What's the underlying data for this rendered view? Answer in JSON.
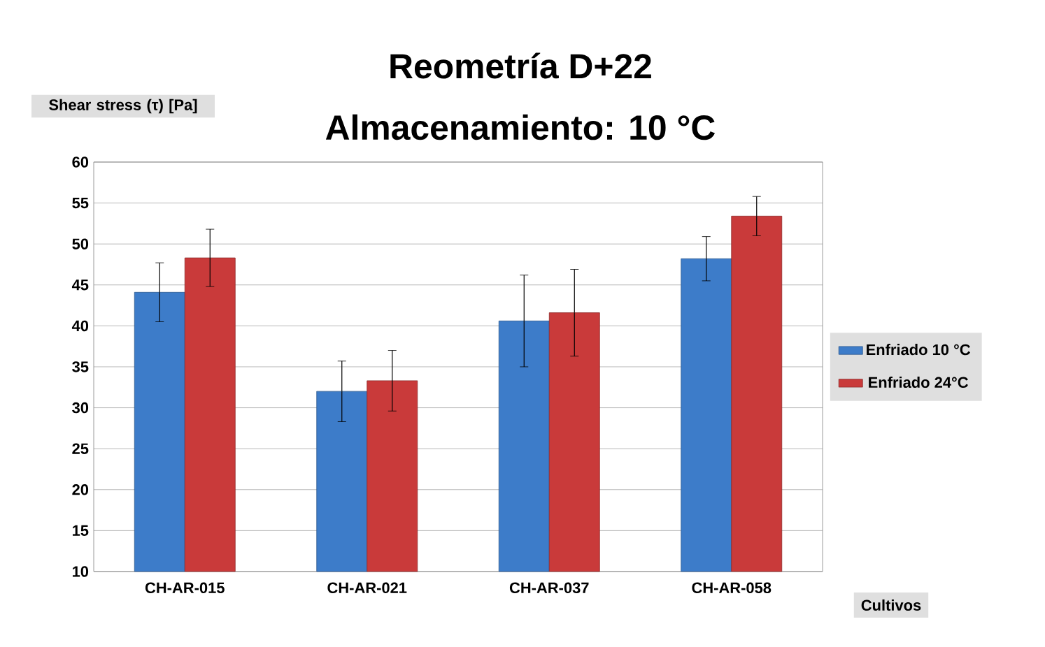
{
  "chart_data": {
    "type": "bar",
    "title": "Reometría D+22",
    "subtitle": "Almacenamiento: 10 °C",
    "ylabel": "Shear stress (τ) [Pa]",
    "xlabel": "Cultivos",
    "categories": [
      "CH-AR-015",
      "CH-AR-021",
      "CH-AR-037",
      "CH-AR-058"
    ],
    "series": [
      {
        "name": "Enfriado 10 °C",
        "color": "#3d7cc9",
        "values": [
          44.1,
          32.0,
          40.6,
          48.2
        ],
        "errors": [
          3.6,
          3.7,
          5.6,
          2.7
        ]
      },
      {
        "name": "Enfriado 24°C",
        "color": "#c93a3a",
        "values": [
          48.3,
          33.3,
          41.6,
          53.4
        ],
        "errors": [
          3.5,
          3.7,
          5.3,
          2.4
        ]
      }
    ],
    "ylim": [
      10,
      60
    ],
    "yticks": [
      10,
      15,
      20,
      25,
      30,
      35,
      40,
      45,
      50,
      55,
      60
    ],
    "grid": "y",
    "legend": "right"
  }
}
